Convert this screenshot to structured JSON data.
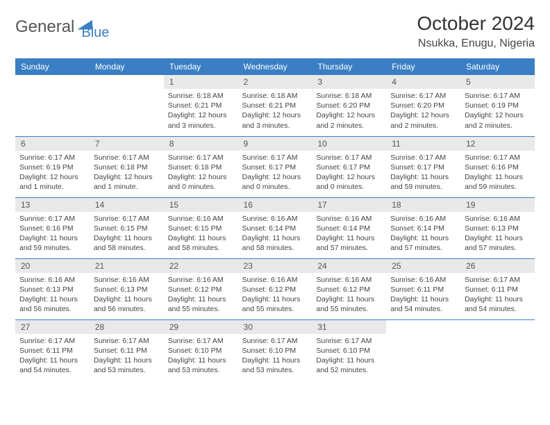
{
  "logo": {
    "part1": "General",
    "part2": "Blue"
  },
  "title": "October 2024",
  "location": "Nsukka, Enugu, Nigeria",
  "colors": {
    "header_bg": "#3a7fc4",
    "header_text": "#ffffff",
    "daynum_bg": "#e9e9e9",
    "border": "#3a7fc4",
    "body_text": "#444444"
  },
  "day_headers": [
    "Sunday",
    "Monday",
    "Tuesday",
    "Wednesday",
    "Thursday",
    "Friday",
    "Saturday"
  ],
  "weeks": [
    [
      null,
      null,
      {
        "n": "1",
        "sr": "Sunrise: 6:18 AM",
        "ss": "Sunset: 6:21 PM",
        "dl": "Daylight: 12 hours and 3 minutes."
      },
      {
        "n": "2",
        "sr": "Sunrise: 6:18 AM",
        "ss": "Sunset: 6:21 PM",
        "dl": "Daylight: 12 hours and 3 minutes."
      },
      {
        "n": "3",
        "sr": "Sunrise: 6:18 AM",
        "ss": "Sunset: 6:20 PM",
        "dl": "Daylight: 12 hours and 2 minutes."
      },
      {
        "n": "4",
        "sr": "Sunrise: 6:17 AM",
        "ss": "Sunset: 6:20 PM",
        "dl": "Daylight: 12 hours and 2 minutes."
      },
      {
        "n": "5",
        "sr": "Sunrise: 6:17 AM",
        "ss": "Sunset: 6:19 PM",
        "dl": "Daylight: 12 hours and 2 minutes."
      }
    ],
    [
      {
        "n": "6",
        "sr": "Sunrise: 6:17 AM",
        "ss": "Sunset: 6:19 PM",
        "dl": "Daylight: 12 hours and 1 minute."
      },
      {
        "n": "7",
        "sr": "Sunrise: 6:17 AM",
        "ss": "Sunset: 6:18 PM",
        "dl": "Daylight: 12 hours and 1 minute."
      },
      {
        "n": "8",
        "sr": "Sunrise: 6:17 AM",
        "ss": "Sunset: 6:18 PM",
        "dl": "Daylight: 12 hours and 0 minutes."
      },
      {
        "n": "9",
        "sr": "Sunrise: 6:17 AM",
        "ss": "Sunset: 6:17 PM",
        "dl": "Daylight: 12 hours and 0 minutes."
      },
      {
        "n": "10",
        "sr": "Sunrise: 6:17 AM",
        "ss": "Sunset: 6:17 PM",
        "dl": "Daylight: 12 hours and 0 minutes."
      },
      {
        "n": "11",
        "sr": "Sunrise: 6:17 AM",
        "ss": "Sunset: 6:17 PM",
        "dl": "Daylight: 11 hours and 59 minutes."
      },
      {
        "n": "12",
        "sr": "Sunrise: 6:17 AM",
        "ss": "Sunset: 6:16 PM",
        "dl": "Daylight: 11 hours and 59 minutes."
      }
    ],
    [
      {
        "n": "13",
        "sr": "Sunrise: 6:17 AM",
        "ss": "Sunset: 6:16 PM",
        "dl": "Daylight: 11 hours and 59 minutes."
      },
      {
        "n": "14",
        "sr": "Sunrise: 6:17 AM",
        "ss": "Sunset: 6:15 PM",
        "dl": "Daylight: 11 hours and 58 minutes."
      },
      {
        "n": "15",
        "sr": "Sunrise: 6:16 AM",
        "ss": "Sunset: 6:15 PM",
        "dl": "Daylight: 11 hours and 58 minutes."
      },
      {
        "n": "16",
        "sr": "Sunrise: 6:16 AM",
        "ss": "Sunset: 6:14 PM",
        "dl": "Daylight: 11 hours and 58 minutes."
      },
      {
        "n": "17",
        "sr": "Sunrise: 6:16 AM",
        "ss": "Sunset: 6:14 PM",
        "dl": "Daylight: 11 hours and 57 minutes."
      },
      {
        "n": "18",
        "sr": "Sunrise: 6:16 AM",
        "ss": "Sunset: 6:14 PM",
        "dl": "Daylight: 11 hours and 57 minutes."
      },
      {
        "n": "19",
        "sr": "Sunrise: 6:16 AM",
        "ss": "Sunset: 6:13 PM",
        "dl": "Daylight: 11 hours and 57 minutes."
      }
    ],
    [
      {
        "n": "20",
        "sr": "Sunrise: 6:16 AM",
        "ss": "Sunset: 6:13 PM",
        "dl": "Daylight: 11 hours and 56 minutes."
      },
      {
        "n": "21",
        "sr": "Sunrise: 6:16 AM",
        "ss": "Sunset: 6:13 PM",
        "dl": "Daylight: 11 hours and 56 minutes."
      },
      {
        "n": "22",
        "sr": "Sunrise: 6:16 AM",
        "ss": "Sunset: 6:12 PM",
        "dl": "Daylight: 11 hours and 55 minutes."
      },
      {
        "n": "23",
        "sr": "Sunrise: 6:16 AM",
        "ss": "Sunset: 6:12 PM",
        "dl": "Daylight: 11 hours and 55 minutes."
      },
      {
        "n": "24",
        "sr": "Sunrise: 6:16 AM",
        "ss": "Sunset: 6:12 PM",
        "dl": "Daylight: 11 hours and 55 minutes."
      },
      {
        "n": "25",
        "sr": "Sunrise: 6:16 AM",
        "ss": "Sunset: 6:11 PM",
        "dl": "Daylight: 11 hours and 54 minutes."
      },
      {
        "n": "26",
        "sr": "Sunrise: 6:17 AM",
        "ss": "Sunset: 6:11 PM",
        "dl": "Daylight: 11 hours and 54 minutes."
      }
    ],
    [
      {
        "n": "27",
        "sr": "Sunrise: 6:17 AM",
        "ss": "Sunset: 6:11 PM",
        "dl": "Daylight: 11 hours and 54 minutes."
      },
      {
        "n": "28",
        "sr": "Sunrise: 6:17 AM",
        "ss": "Sunset: 6:11 PM",
        "dl": "Daylight: 11 hours and 53 minutes."
      },
      {
        "n": "29",
        "sr": "Sunrise: 6:17 AM",
        "ss": "Sunset: 6:10 PM",
        "dl": "Daylight: 11 hours and 53 minutes."
      },
      {
        "n": "30",
        "sr": "Sunrise: 6:17 AM",
        "ss": "Sunset: 6:10 PM",
        "dl": "Daylight: 11 hours and 53 minutes."
      },
      {
        "n": "31",
        "sr": "Sunrise: 6:17 AM",
        "ss": "Sunset: 6:10 PM",
        "dl": "Daylight: 11 hours and 52 minutes."
      },
      null,
      null
    ]
  ]
}
